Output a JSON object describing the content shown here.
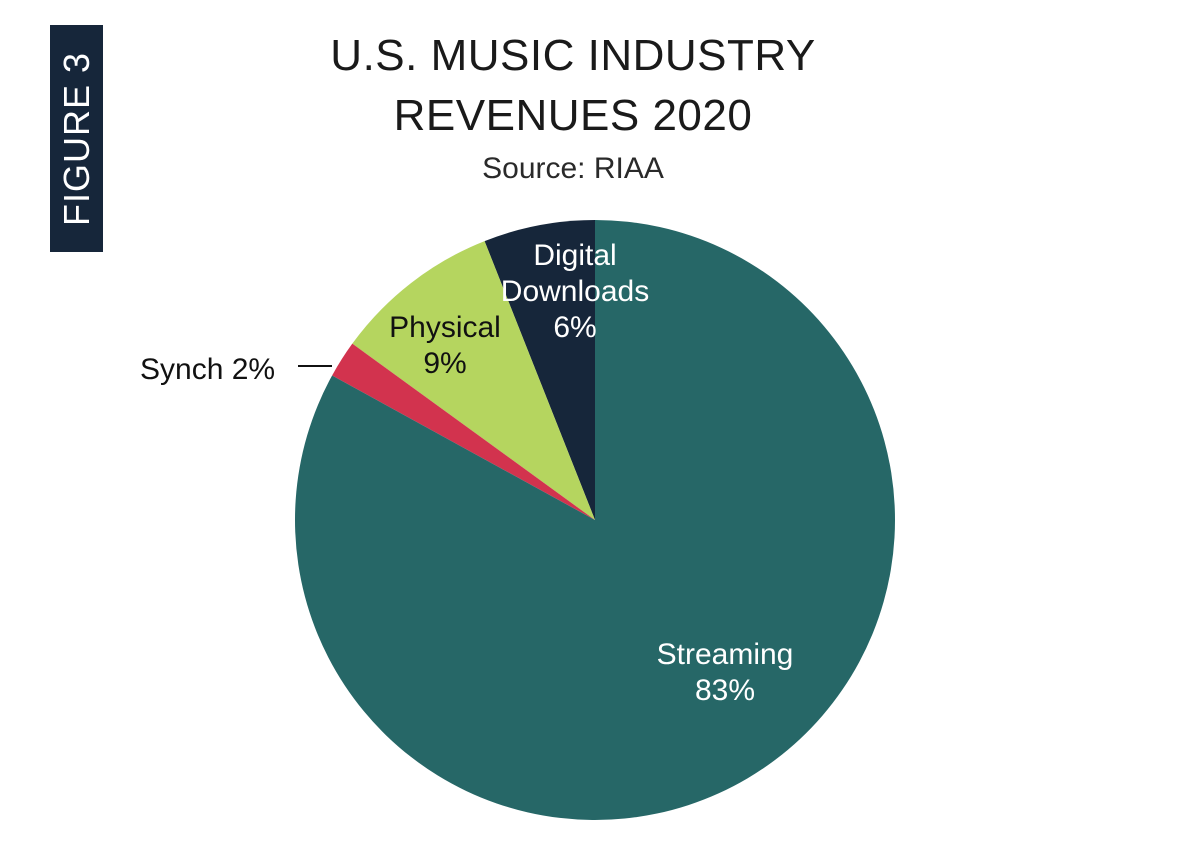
{
  "figure_tag": "FIGURE 3",
  "chart_data": {
    "type": "pie",
    "title_lines": [
      "U.S. MUSIC INDUSTRY",
      "REVENUES 2020"
    ],
    "subtitle": "Source: RIAA",
    "unit": "percent",
    "start": "12 o'clock, clockwise",
    "slices": [
      {
        "label": "Streaming",
        "value": 83,
        "value_label": "83%",
        "color": "#266767"
      },
      {
        "label": "Synch",
        "value": 2,
        "value_label": "2%",
        "color": "#d2334e"
      },
      {
        "label": "Physical",
        "value": 9,
        "value_label": "9%",
        "color": "#b5d55f"
      },
      {
        "label": "Digital Downloads",
        "value": 6,
        "value_label": "6%",
        "color": "#16263a"
      }
    ]
  }
}
